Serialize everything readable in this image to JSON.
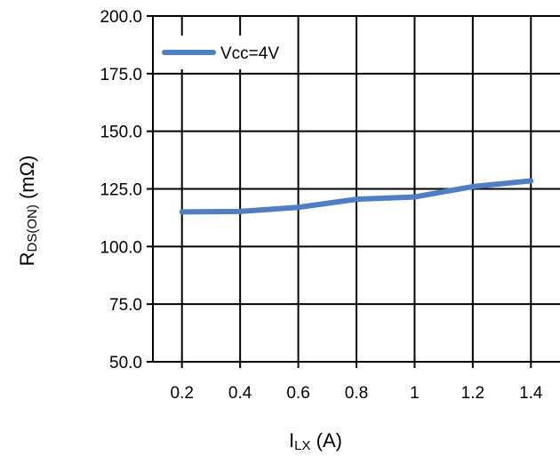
{
  "chart_data": {
    "type": "line",
    "x": [
      0.2,
      0.4,
      0.6,
      0.8,
      1.0,
      1.2,
      1.4
    ],
    "x_tick_labels": [
      "0.2",
      "0.4",
      "0.6",
      "0.8",
      "1",
      "1.2",
      "1.4"
    ],
    "y_tick_labels": [
      "50.0",
      "75.0",
      "100.0",
      "125.0",
      "150.0",
      "175.0",
      "200.0"
    ],
    "y_ticks": [
      50,
      75,
      100,
      125,
      150,
      175,
      200
    ],
    "ylim": [
      50,
      200
    ],
    "xlim": [
      0.1,
      1.5
    ],
    "series": [
      {
        "name": "Vcc=4V",
        "values": [
          115.0,
          115.2,
          117.0,
          120.5,
          121.5,
          126.0,
          128.5
        ],
        "color": "#4f7ec4"
      }
    ],
    "xlabel_main": "I",
    "xlabel_sub": "LX",
    "xlabel_unit": " (A)",
    "ylabel_main": "R",
    "ylabel_sub": "DS(ON)",
    "ylabel_unit": " (mΩ)",
    "grid": true,
    "legend_position": "top-left"
  }
}
